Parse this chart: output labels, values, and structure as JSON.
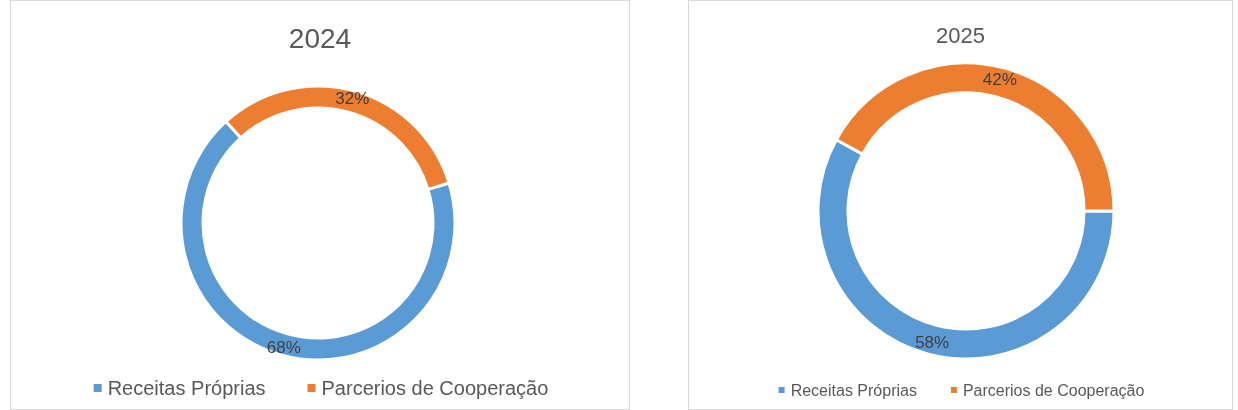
{
  "chart_data": [
    {
      "type": "donut",
      "title": "2024",
      "categories": [
        "Receitas Próprias",
        "Parcerios de Cooperação"
      ],
      "values": [
        68,
        32
      ],
      "value_labels": [
        "68%",
        "32%"
      ],
      "colors": [
        "#5b9bd5",
        "#ed7d31"
      ],
      "legend": "bottom"
    },
    {
      "type": "donut",
      "title": "2025",
      "categories": [
        "Receitas Próprias",
        "Parcerios de Cooperação"
      ],
      "values": [
        58,
        42
      ],
      "value_labels": [
        "58%",
        "42%"
      ],
      "colors": [
        "#5b9bd5",
        "#ed7d31"
      ],
      "legend": "bottom"
    }
  ]
}
